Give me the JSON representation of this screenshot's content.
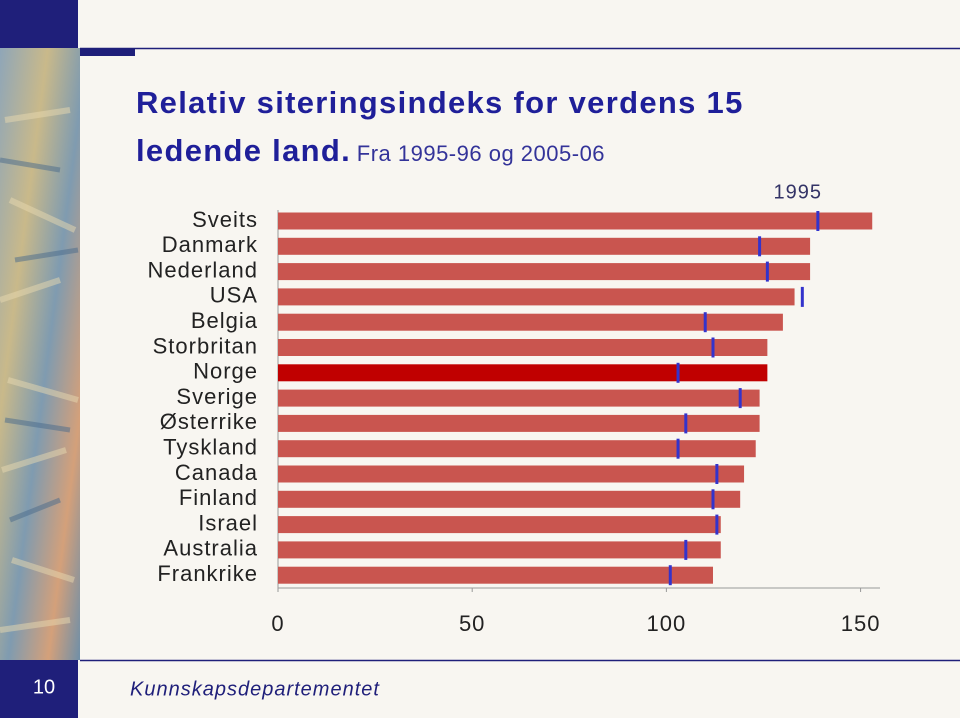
{
  "slide": {
    "page_number": "10",
    "footer": "Kunnskapsdepartementet"
  },
  "chart_data": {
    "type": "bar",
    "orientation": "horizontal",
    "title": "Relativ siteringsindeks for verdens 15 ledende land.",
    "subtitle": "Fra 1995-96 og 2005-06",
    "categories": [
      "Sveits",
      "Danmark",
      "Nederland",
      "USA",
      "Belgia",
      "Storbritan",
      "Norge",
      "Sverige",
      "Østerrike",
      "Tyskland",
      "Canada",
      "Finland",
      "Israel",
      "Australia",
      "Frankrike"
    ],
    "series": [
      {
        "color": "#c9554f",
        "highlight": {
          "index": 6,
          "color": "#c00000"
        },
        "values": [
          153,
          137,
          137,
          133,
          130,
          126,
          126,
          124,
          124,
          123,
          120,
          119,
          114,
          114,
          112
        ]
      },
      {
        "name": "1995",
        "color": "#3333cc",
        "marker": "tick",
        "values": [
          139,
          124,
          126,
          135,
          110,
          112,
          103,
          119,
          105,
          103,
          113,
          112,
          113,
          105,
          101
        ]
      }
    ],
    "xlim": [
      0,
      155
    ],
    "xticks": [
      0,
      50,
      100,
      150
    ],
    "grid": false
  }
}
